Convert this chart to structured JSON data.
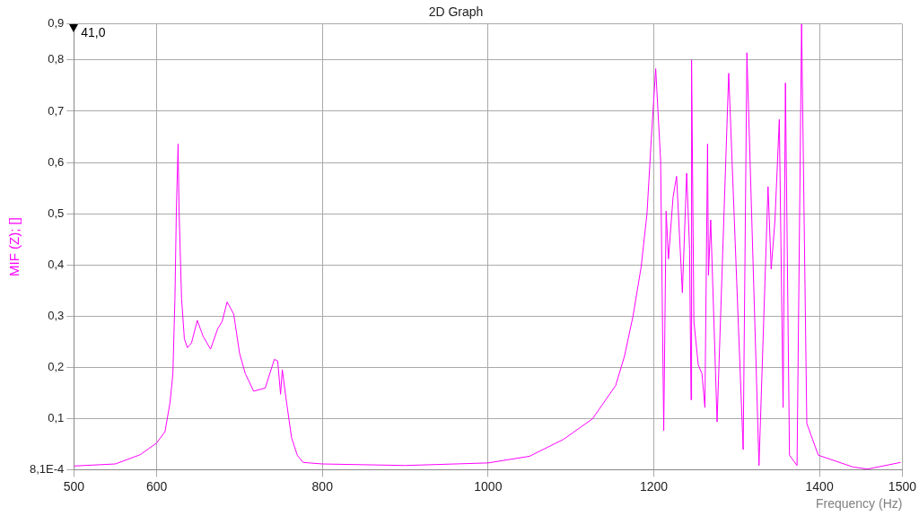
{
  "chart_data": {
    "type": "line",
    "title": "2D Graph",
    "xlabel": "Frequency (Hz)",
    "ylabel": "MIF (Z); []",
    "annotations": [
      "41,0"
    ],
    "x": [
      500,
      550,
      580,
      600,
      610,
      616,
      619.5,
      622,
      623.7,
      625.8,
      627,
      630,
      633.4,
      637,
      642,
      649,
      656,
      665,
      673.7,
      679,
      685,
      693,
      700,
      707,
      717,
      731,
      742,
      746,
      749.5,
      751.6,
      755.8,
      762.8,
      769.7,
      776.7,
      800,
      900,
      1000,
      1050,
      1091,
      1126,
      1154,
      1164.6,
      1175,
      1184.8,
      1191.8,
      1197,
      1202.3,
      1208.3,
      1212,
      1214.9,
      1217.7,
      1223.3,
      1227.5,
      1234.5,
      1239.7,
      1243.2,
      1245,
      1245.6,
      1248.4,
      1253.7,
      1258.2,
      1261.7,
      1264.9,
      1266,
      1268.7,
      1276.4,
      1290.4,
      1307.9,
      1312.4,
      1327,
      1337.9,
      1341.7,
      1346.3,
      1351.5,
      1356.1,
      1358.9,
      1363.8,
      1372.9,
      1378.4,
      1384.7,
      1398.6,
      1440.6,
      1458,
      1498
    ],
    "series": [
      {
        "color": "#ff00ff",
        "values": [
          0.008,
          0.012,
          0.03,
          0.053,
          0.075,
          0.131,
          0.187,
          0.335,
          0.505,
          0.636,
          0.505,
          0.335,
          0.256,
          0.239,
          0.248,
          0.292,
          0.261,
          0.236,
          0.276,
          0.29,
          0.328,
          0.304,
          0.228,
          0.188,
          0.154,
          0.16,
          0.216,
          0.213,
          0.148,
          0.196,
          0.143,
          0.063,
          0.029,
          0.015,
          0.012,
          0.009,
          0.014,
          0.027,
          0.06,
          0.1,
          0.165,
          0.222,
          0.301,
          0.397,
          0.5,
          0.647,
          0.783,
          0.602,
          0.077,
          0.505,
          0.412,
          0.533,
          0.573,
          0.346,
          0.579,
          0.431,
          0.137,
          0.8,
          0.29,
          0.205,
          0.188,
          0.122,
          0.636,
          0.38,
          0.488,
          0.094,
          0.774,
          0.04,
          0.814,
          0.009,
          0.553,
          0.392,
          0.488,
          0.684,
          0.122,
          0.755,
          0.029,
          0.009,
          0.87,
          0.091,
          0.029,
          0.006,
          0.002,
          0.015
        ]
      }
    ],
    "xlim": [
      500,
      1500
    ],
    "ylim": [
      0.00081,
      0.87
    ],
    "xticks": [
      500,
      600,
      800,
      1000,
      1200,
      1400,
      1500
    ],
    "yticks": [
      {
        "value": 0.00081,
        "label": "8,1E-4"
      },
      {
        "value": 0.1,
        "label": "0,1"
      },
      {
        "value": 0.2,
        "label": "0,2"
      },
      {
        "value": 0.3,
        "label": "0,3"
      },
      {
        "value": 0.4,
        "label": "0,4"
      },
      {
        "value": 0.5,
        "label": "0,5"
      },
      {
        "value": 0.6,
        "label": "0,6"
      },
      {
        "value": 0.7,
        "label": "0,7"
      },
      {
        "value": 0.8,
        "label": "0,8"
      },
      {
        "value": 0.87,
        "label": "0,9"
      }
    ],
    "grid": true,
    "legend": false,
    "marker": "none",
    "line_style": "solid"
  }
}
